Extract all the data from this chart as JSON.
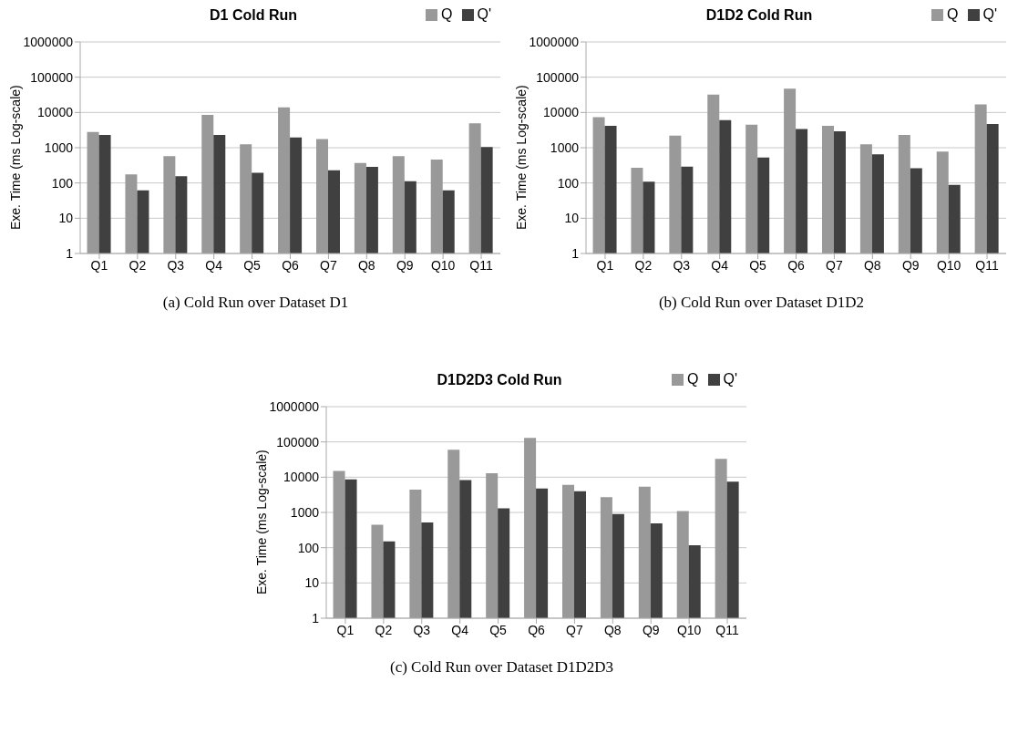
{
  "chart_data": [
    {
      "type": "bar",
      "title": "D1 Cold Run",
      "ylabel": "Exe. Time (ms Log-scale)",
      "categories": [
        "Q1",
        "Q2",
        "Q3",
        "Q4",
        "Q5",
        "Q6",
        "Q7",
        "Q8",
        "Q9",
        "Q10",
        "Q11"
      ],
      "series": [
        {
          "name": "Q",
          "color": "#999999",
          "values": [
            2800,
            175,
            580,
            8500,
            1250,
            14000,
            1750,
            370,
            580,
            460,
            4900
          ]
        },
        {
          "name": "Q'",
          "color": "#404040",
          "values": [
            2300,
            62,
            155,
            2300,
            195,
            1950,
            230,
            285,
            112,
            62,
            1050
          ]
        }
      ],
      "log": true,
      "ylim": [
        1,
        1000000
      ],
      "yticks": [
        1,
        10,
        100,
        1000,
        10000,
        100000,
        1000000
      ],
      "grid": "y",
      "legend": "top right",
      "annotations": [
        "(a) Cold Run over Dataset D1"
      ]
    },
    {
      "type": "bar",
      "title": "D1D2 Cold Run",
      "ylabel": "Exe. Time (ms Log-scale)",
      "categories": [
        "Q1",
        "Q2",
        "Q3",
        "Q4",
        "Q5",
        "Q6",
        "Q7",
        "Q8",
        "Q9",
        "Q10",
        "Q11"
      ],
      "series": [
        {
          "name": "Q",
          "color": "#999999",
          "values": [
            7300,
            270,
            2200,
            32000,
            4500,
            47000,
            4200,
            1250,
            2300,
            780,
            17000
          ]
        },
        {
          "name": "Q'",
          "color": "#404040",
          "values": [
            4200,
            108,
            290,
            6100,
            530,
            3400,
            2900,
            650,
            260,
            88,
            4700
          ]
        }
      ],
      "log": true,
      "ylim": [
        1,
        1000000
      ],
      "yticks": [
        1,
        10,
        100,
        1000,
        10000,
        100000,
        1000000
      ],
      "grid": "y",
      "legend": "top right",
      "annotations": [
        "(b) Cold Run over Dataset D1D2"
      ]
    },
    {
      "type": "bar",
      "title": "D1D2D3 Cold Run",
      "ylabel": "Exe. Time (ms Log-scale)",
      "categories": [
        "Q1",
        "Q2",
        "Q3",
        "Q4",
        "Q5",
        "Q6",
        "Q7",
        "Q8",
        "Q9",
        "Q10",
        "Q11"
      ],
      "series": [
        {
          "name": "Q",
          "color": "#999999",
          "values": [
            15000,
            450,
            4400,
            60000,
            13000,
            130000,
            6100,
            2700,
            5400,
            1100,
            33000
          ]
        },
        {
          "name": "Q'",
          "color": "#404040",
          "values": [
            8700,
            150,
            520,
            8300,
            1300,
            4800,
            4000,
            900,
            490,
            118,
            7500
          ]
        }
      ],
      "log": true,
      "ylim": [
        1,
        1000000
      ],
      "yticks": [
        1,
        10,
        100,
        1000,
        10000,
        100000,
        1000000
      ],
      "grid": "y",
      "legend": "top right",
      "annotations": [
        "(c) Cold Run over Dataset D1D2D3"
      ]
    }
  ]
}
